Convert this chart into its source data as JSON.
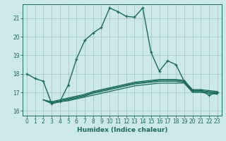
{
  "xlabel": "Humidex (Indice chaleur)",
  "bg_color": "#cce8e8",
  "grid_color": "#aacccc",
  "line_color": "#1a6b5a",
  "xlim": [
    -0.5,
    23.5
  ],
  "ylim": [
    15.75,
    21.75
  ],
  "yticks": [
    16,
    17,
    18,
    19,
    20,
    21
  ],
  "xticks": [
    0,
    1,
    2,
    3,
    4,
    5,
    6,
    7,
    8,
    9,
    10,
    11,
    12,
    13,
    14,
    15,
    16,
    17,
    18,
    19,
    20,
    21,
    22,
    23
  ],
  "main_curve_x": [
    0,
    1,
    2,
    3,
    4,
    5,
    6,
    7,
    8,
    9,
    10,
    11,
    12,
    13,
    14,
    15,
    16,
    17,
    18,
    19,
    20,
    21,
    22,
    23
  ],
  "main_curve_y": [
    18.0,
    17.75,
    17.6,
    16.4,
    16.5,
    17.4,
    18.8,
    19.8,
    20.2,
    20.5,
    21.55,
    21.35,
    21.1,
    21.05,
    21.55,
    19.15,
    18.15,
    18.7,
    18.5,
    17.6,
    17.1,
    17.1,
    16.85,
    17.0
  ],
  "flat_lines": [
    {
      "x": [
        2,
        3,
        4,
        5,
        6,
        7,
        8,
        9,
        10,
        11,
        12,
        13,
        14,
        15,
        16,
        17,
        18,
        19,
        20,
        21,
        22,
        23
      ],
      "y": [
        16.6,
        16.4,
        16.5,
        16.55,
        16.65,
        16.75,
        16.85,
        16.95,
        17.05,
        17.15,
        17.25,
        17.35,
        17.4,
        17.45,
        17.5,
        17.5,
        17.5,
        17.5,
        17.0,
        17.0,
        16.95,
        16.9
      ]
    },
    {
      "x": [
        2,
        3,
        4,
        5,
        6,
        7,
        8,
        9,
        10,
        11,
        12,
        13,
        14,
        15,
        16,
        17,
        18,
        19,
        20,
        21,
        22,
        23
      ],
      "y": [
        16.6,
        16.45,
        16.5,
        16.6,
        16.7,
        16.8,
        16.95,
        17.05,
        17.15,
        17.25,
        17.35,
        17.45,
        17.5,
        17.55,
        17.6,
        17.6,
        17.6,
        17.55,
        17.05,
        17.05,
        17.0,
        16.95
      ]
    },
    {
      "x": [
        2,
        3,
        4,
        5,
        6,
        7,
        8,
        9,
        10,
        11,
        12,
        13,
        14,
        15,
        16,
        17,
        18,
        19,
        20,
        21,
        22,
        23
      ],
      "y": [
        16.6,
        16.5,
        16.55,
        16.65,
        16.75,
        16.85,
        17.0,
        17.1,
        17.2,
        17.3,
        17.4,
        17.5,
        17.55,
        17.6,
        17.65,
        17.65,
        17.65,
        17.6,
        17.1,
        17.1,
        17.05,
        17.0
      ]
    },
    {
      "x": [
        3,
        4,
        5,
        6,
        7,
        8,
        9,
        10,
        11,
        12,
        13,
        14,
        15,
        16,
        17,
        18,
        19,
        20,
        21,
        22,
        23
      ],
      "y": [
        16.5,
        16.6,
        16.7,
        16.8,
        16.9,
        17.05,
        17.15,
        17.25,
        17.35,
        17.45,
        17.55,
        17.6,
        17.65,
        17.7,
        17.7,
        17.7,
        17.65,
        17.15,
        17.15,
        17.1,
        17.05
      ]
    }
  ]
}
